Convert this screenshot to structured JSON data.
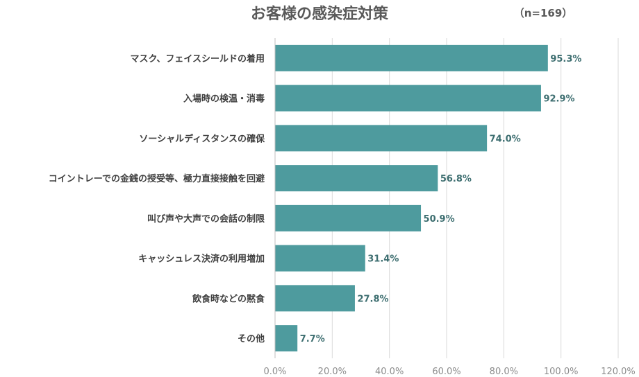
{
  "chart_data": {
    "type": "bar",
    "orientation": "horizontal",
    "title": "お客様の感染症対策",
    "note": "（n=169）",
    "categories": [
      "マスク、フェイスシールドの着用",
      "入場時の検温・消毒",
      "ソーシャルディスタンスの確保",
      "コイントレーでの金銭の授受等、極力直接接触を回避",
      "叫び声や大声での会話の制限",
      "キャッシュレス決済の利用増加",
      "飲食時などの黙食",
      "その他"
    ],
    "values": [
      95.3,
      92.9,
      74.0,
      56.8,
      50.9,
      31.4,
      27.8,
      7.7
    ],
    "value_labels": [
      "95.3%",
      "92.9%",
      "74.0%",
      "56.8%",
      "50.9%",
      "31.4%",
      "27.8%",
      "7.7%"
    ],
    "xlim": [
      0,
      120
    ],
    "xticks": [
      0,
      20,
      40,
      60,
      80,
      100,
      120
    ],
    "xtick_labels": [
      "0.0%",
      "20.0%",
      "40.0%",
      "60.0%",
      "80.0%",
      "100.0%",
      "120.0%"
    ],
    "grid": true,
    "bar_color": "#4e9b9e"
  }
}
